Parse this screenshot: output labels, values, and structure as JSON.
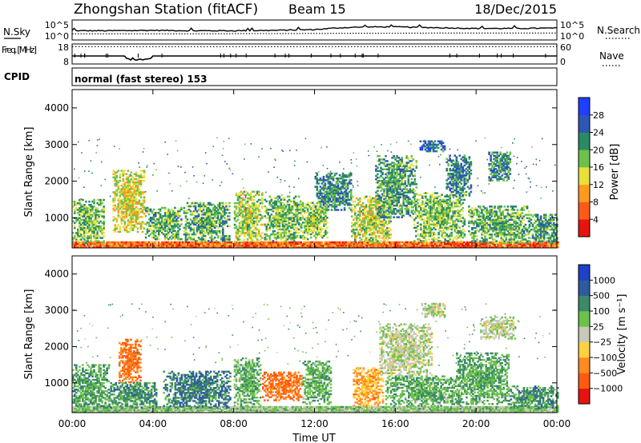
{
  "header": {
    "title": "Zhongshan Station (fitACF)",
    "beam": "Beam 15",
    "date": "18/Dec/2015"
  },
  "chart_data": [
    {
      "type": "line",
      "panel": "noise",
      "left_label": "N.Sky",
      "right_label": "N.Search",
      "left_ticks": [
        "10^5",
        "10^0"
      ],
      "right_ticks": [
        "10^5",
        "10^0"
      ],
      "series": [
        {
          "name": "N.Sky",
          "x_hours": [
            0,
            2,
            4,
            6,
            8,
            10,
            12,
            13,
            14,
            15,
            16,
            17,
            18,
            19,
            20,
            22,
            24
          ],
          "values": [
            2.2,
            2.2,
            2.3,
            2.2,
            2.2,
            2.3,
            2.5,
            2.9,
            3.1,
            3.2,
            3.2,
            3.1,
            3.0,
            2.9,
            2.8,
            2.8,
            2.9
          ]
        },
        {
          "name": "N.Search",
          "x_hours": [
            0,
            6,
            12,
            18,
            24
          ],
          "values": [
            1.4,
            1.4,
            1.5,
            1.6,
            1.6
          ]
        }
      ]
    },
    {
      "type": "line",
      "panel": "frequency",
      "left_label": "Freq. [MHz]",
      "right_label": "Nave",
      "left_ticks": [
        "18",
        "8"
      ],
      "right_ticks": [
        "60",
        "0"
      ],
      "ylim_left": [
        8,
        18
      ],
      "ylim_right": [
        0,
        60
      ],
      "series": [
        {
          "name": "Freq",
          "x_hours": [
            0,
            2.6,
            2.7,
            3.9,
            4.0,
            24
          ],
          "values": [
            12.0,
            12.0,
            10.5,
            10.5,
            12.0,
            12.0
          ]
        },
        {
          "name": "Nave",
          "x_hours": [
            0,
            24
          ],
          "values": [
            52,
            52
          ]
        }
      ]
    },
    {
      "type": "text",
      "panel": "cpid",
      "left_label": "CPID",
      "text": "normal (fast stereo) 153"
    },
    {
      "type": "heatmap",
      "panel": "power",
      "ylabel": "Slant Range [km]",
      "xlabel": "",
      "ylim": [
        180,
        4500
      ],
      "yticks": [
        1000,
        2000,
        3000,
        4000
      ],
      "xlim_hours": [
        0,
        24
      ],
      "colorbar": {
        "label": "Power [dB]",
        "ticks": [
          4,
          8,
          12,
          16,
          20,
          24,
          28
        ],
        "colors": [
          "#1f3fff",
          "#2f55b5",
          "#2a8a66",
          "#6cc24a",
          "#e8e03a",
          "#ff9a1f",
          "#ff5a1a",
          "#e6140f"
        ]
      },
      "regions": [
        {
          "t0": 0.0,
          "t1": 24.0,
          "r0": 180,
          "r1": 320,
          "level": 0.78
        },
        {
          "t0": 0.0,
          "t1": 1.6,
          "r0": 300,
          "r1": 1500,
          "level": 0.42
        },
        {
          "t0": 2.0,
          "t1": 3.6,
          "r0": 600,
          "r1": 2300,
          "level": 0.55
        },
        {
          "t0": 3.6,
          "t1": 5.4,
          "r0": 400,
          "r1": 1300,
          "level": 0.4
        },
        {
          "t0": 5.5,
          "t1": 7.8,
          "r0": 350,
          "r1": 1400,
          "level": 0.38
        },
        {
          "t0": 8.0,
          "t1": 9.4,
          "r0": 300,
          "r1": 1700,
          "level": 0.5
        },
        {
          "t0": 9.5,
          "t1": 11.3,
          "r0": 350,
          "r1": 1600,
          "level": 0.42
        },
        {
          "t0": 11.3,
          "t1": 12.6,
          "r0": 400,
          "r1": 1400,
          "level": 0.46
        },
        {
          "t0": 12.0,
          "t1": 13.8,
          "r0": 1200,
          "r1": 2200,
          "level": 0.3
        },
        {
          "t0": 13.8,
          "t1": 15.8,
          "r0": 300,
          "r1": 1600,
          "level": 0.52
        },
        {
          "t0": 15.0,
          "t1": 17.0,
          "r0": 1000,
          "r1": 2700,
          "level": 0.36
        },
        {
          "t0": 16.9,
          "t1": 19.4,
          "r0": 350,
          "r1": 1700,
          "level": 0.44
        },
        {
          "t0": 17.2,
          "t1": 18.4,
          "r0": 2800,
          "r1": 3100,
          "level": 0.22
        },
        {
          "t0": 18.5,
          "t1": 19.7,
          "r0": 1600,
          "r1": 2700,
          "level": 0.28
        },
        {
          "t0": 19.6,
          "t1": 22.6,
          "r0": 300,
          "r1": 1300,
          "level": 0.4
        },
        {
          "t0": 20.6,
          "t1": 21.7,
          "r0": 2000,
          "r1": 2800,
          "level": 0.3
        },
        {
          "t0": 22.6,
          "t1": 24.0,
          "r0": 300,
          "r1": 1100,
          "level": 0.36
        }
      ]
    },
    {
      "type": "heatmap",
      "panel": "velocity",
      "ylabel": "Slant Range [km]",
      "xlabel": "Time UT",
      "ylim": [
        180,
        4500
      ],
      "yticks": [
        1000,
        2000,
        3000,
        4000
      ],
      "xlim_hours": [
        0,
        24
      ],
      "xtick_labels": [
        "00:00",
        "04:00",
        "08:00",
        "12:00",
        "16:00",
        "20:00",
        "00:00"
      ],
      "colorbar": {
        "label": "Velocity [m s⁻¹]",
        "ticks": [
          "1000",
          "500",
          "100",
          "25",
          "−25",
          "−100",
          "−500",
          "−1000"
        ],
        "colors": [
          "#2040c8",
          "#305a9e",
          "#3b8a68",
          "#6cc24a",
          "#c8c8b8",
          "#ffd040",
          "#ff8a1f",
          "#ff5a10",
          "#e6140f"
        ]
      },
      "regions": [
        {
          "t0": 0.0,
          "t1": 24.0,
          "r0": 180,
          "r1": 320,
          "vel": 0.15
        },
        {
          "t0": 0.0,
          "t1": 1.8,
          "r0": 300,
          "r1": 1500,
          "vel": 0.35
        },
        {
          "t0": 2.3,
          "t1": 3.4,
          "r0": 1000,
          "r1": 2200,
          "vel": -0.55
        },
        {
          "t0": 1.8,
          "t1": 4.2,
          "r0": 300,
          "r1": 1000,
          "vel": 0.4
        },
        {
          "t0": 4.5,
          "t1": 7.8,
          "r0": 300,
          "r1": 1300,
          "vel": 0.5
        },
        {
          "t0": 8.0,
          "t1": 9.3,
          "r0": 350,
          "r1": 1700,
          "vel": 0.28
        },
        {
          "t0": 9.4,
          "t1": 11.4,
          "r0": 500,
          "r1": 1300,
          "vel": -0.55
        },
        {
          "t0": 11.4,
          "t1": 12.8,
          "r0": 400,
          "r1": 1600,
          "vel": 0.3
        },
        {
          "t0": 13.9,
          "t1": 15.4,
          "r0": 350,
          "r1": 1400,
          "vel": -0.35
        },
        {
          "t0": 15.2,
          "t1": 17.8,
          "r0": 1200,
          "r1": 2600,
          "vel": 0.05
        },
        {
          "t0": 15.5,
          "t1": 19.2,
          "r0": 350,
          "r1": 1200,
          "vel": 0.3
        },
        {
          "t0": 17.2,
          "t1": 18.4,
          "r0": 2800,
          "r1": 3200,
          "vel": 0.05
        },
        {
          "t0": 19.0,
          "t1": 21.6,
          "r0": 400,
          "r1": 1800,
          "vel": 0.32
        },
        {
          "t0": 20.2,
          "t1": 21.9,
          "r0": 2200,
          "r1": 2800,
          "vel": 0.05
        },
        {
          "t0": 21.6,
          "t1": 24.0,
          "r0": 300,
          "r1": 900,
          "vel": 0.42
        }
      ]
    }
  ]
}
